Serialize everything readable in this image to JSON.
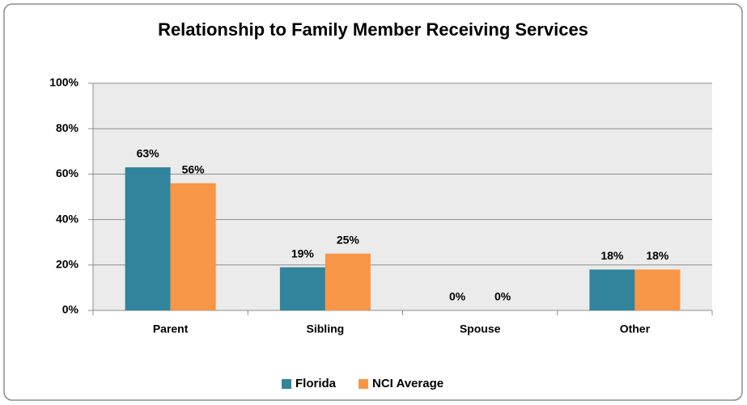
{
  "chart_data": {
    "type": "bar",
    "title": "Relationship to Family Member Receiving Services",
    "categories": [
      "Parent",
      "Sibling",
      "Spouse",
      "Other"
    ],
    "series": [
      {
        "name": "Florida",
        "color": "#31849b",
        "values": [
          63,
          19,
          0,
          18
        ],
        "value_labels": [
          "63%",
          "19%",
          "0%",
          "18%"
        ]
      },
      {
        "name": "NCI Average",
        "color": "#f79646",
        "values": [
          56,
          25,
          0,
          18
        ],
        "value_labels": [
          "56%",
          "25%",
          "0%",
          "18%"
        ]
      }
    ],
    "ylim": [
      0,
      100
    ],
    "yticks": [
      {
        "value": 0,
        "label": "0%"
      },
      {
        "value": 20,
        "label": "20%"
      },
      {
        "value": 40,
        "label": "40%"
      },
      {
        "value": 60,
        "label": "60%"
      },
      {
        "value": 80,
        "label": "80%"
      },
      {
        "value": 100,
        "label": "100%"
      }
    ],
    "grid": true,
    "legend": "bottom"
  }
}
